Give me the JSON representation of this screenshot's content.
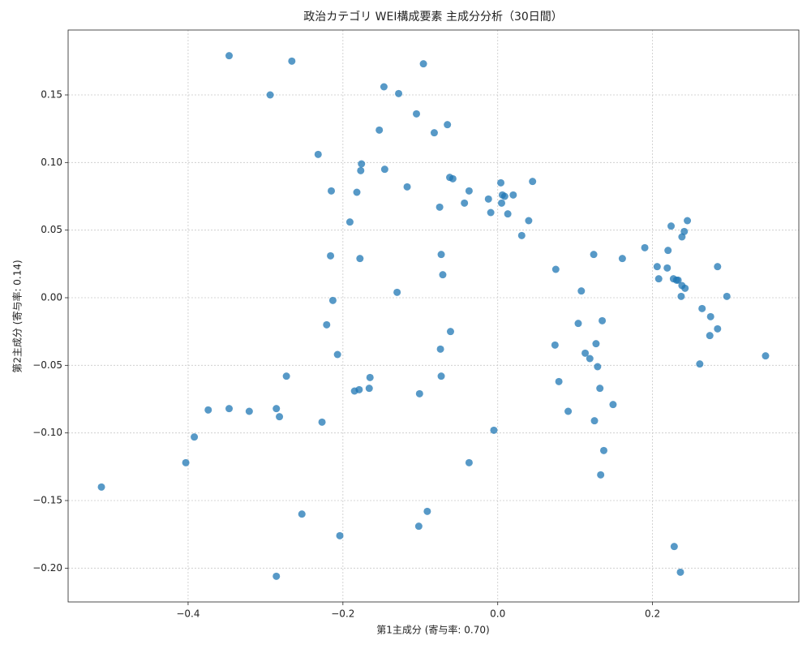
{
  "chart_data": {
    "type": "scatter",
    "title": "政治カテゴリ WEI構成要素 主成分分析（30日間）",
    "x_label": "第1主成分 (寄与率: 0.70)",
    "y_label": "第2主成分 (寄与率: 0.14)",
    "color": "#1f77b4",
    "grid": true,
    "xlim": [
      -0.555,
      0.389
    ],
    "ylim": [
      -0.225,
      0.198
    ],
    "xticks": [
      {
        "value": -0.4,
        "label": "−0.4"
      },
      {
        "value": -0.2,
        "label": "−0.2"
      },
      {
        "value": 0.0,
        "label": "0.0"
      },
      0.2
    ],
    "yticks": [
      {
        "value": -0.2,
        "label": "−0.20"
      },
      {
        "value": -0.15,
        "label": "−0.15"
      },
      {
        "value": -0.1,
        "label": "−0.10"
      },
      {
        "value": -0.05,
        "label": "−0.05"
      },
      {
        "value": 0.0,
        "label": "0.00"
      },
      0.05,
      {
        "value": 0.1,
        "label": "0.10"
      },
      0.15
    ],
    "x": [
      -0.512,
      -0.403,
      -0.392,
      -0.374,
      -0.347,
      -0.347,
      -0.321,
      -0.294,
      -0.286,
      -0.282,
      -0.286,
      -0.273,
      -0.266,
      -0.253,
      -0.232,
      -0.227,
      -0.221,
      -0.215,
      -0.216,
      -0.213,
      -0.207,
      -0.204,
      -0.191,
      -0.185,
      -0.182,
      -0.179,
      -0.178,
      -0.177,
      -0.176,
      -0.166,
      -0.165,
      -0.153,
      -0.147,
      -0.146,
      -0.13,
      -0.128,
      -0.117,
      -0.105,
      -0.102,
      -0.101,
      -0.096,
      -0.091,
      -0.082,
      -0.075,
      -0.074,
      -0.073,
      -0.073,
      -0.071,
      -0.065,
      -0.062,
      -0.058,
      -0.061,
      -0.043,
      -0.037,
      -0.037,
      -0.012,
      -0.009,
      -0.005,
      0.004,
      0.005,
      0.006,
      0.009,
      0.013,
      0.02,
      0.031,
      0.04,
      0.045,
      0.074,
      0.075,
      0.079,
      0.091,
      0.104,
      0.108,
      0.113,
      0.119,
      0.124,
      0.125,
      0.127,
      0.129,
      0.132,
      0.133,
      0.135,
      0.137,
      0.149,
      0.161,
      0.19,
      0.206,
      0.208,
      0.219,
      0.22,
      0.224,
      0.227,
      0.228,
      0.231,
      0.233,
      0.236,
      0.237,
      0.238,
      0.238,
      0.241,
      0.242,
      0.245,
      0.261,
      0.264,
      0.274,
      0.275,
      0.284,
      0.284,
      0.296,
      0.346
    ],
    "values": [
      -0.14,
      -0.122,
      -0.103,
      -0.083,
      -0.082,
      0.179,
      -0.084,
      0.15,
      -0.082,
      -0.088,
      -0.206,
      -0.058,
      0.175,
      -0.16,
      0.106,
      -0.092,
      -0.02,
      0.079,
      0.031,
      -0.002,
      -0.042,
      -0.176,
      0.056,
      -0.069,
      0.078,
      -0.068,
      0.029,
      0.094,
      0.099,
      -0.067,
      -0.059,
      0.124,
      0.156,
      0.095,
      0.004,
      0.151,
      0.082,
      0.136,
      -0.169,
      -0.071,
      0.173,
      -0.158,
      0.122,
      0.067,
      -0.038,
      0.032,
      -0.058,
      0.017,
      0.128,
      0.089,
      0.088,
      -0.025,
      0.07,
      0.079,
      -0.122,
      0.073,
      0.063,
      -0.098,
      0.085,
      0.07,
      0.076,
      0.075,
      0.062,
      0.076,
      0.046,
      0.057,
      0.086,
      -0.035,
      0.021,
      -0.062,
      -0.084,
      -0.019,
      0.005,
      -0.041,
      -0.045,
      0.032,
      -0.091,
      -0.034,
      -0.051,
      -0.067,
      -0.131,
      -0.017,
      -0.113,
      -0.079,
      0.029,
      0.037,
      0.023,
      0.014,
      0.022,
      0.035,
      0.053,
      0.014,
      -0.184,
      0.013,
      0.013,
      -0.203,
      0.001,
      0.009,
      0.045,
      0.049,
      0.007,
      0.057,
      -0.049,
      -0.008,
      -0.028,
      -0.014,
      -0.023,
      0.023,
      0.001,
      -0.043
    ]
  }
}
